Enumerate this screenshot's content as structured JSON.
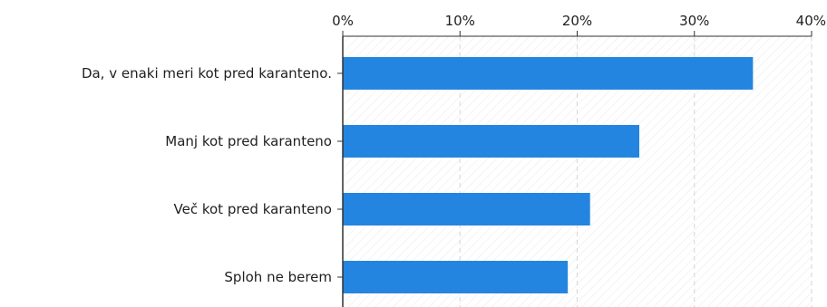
{
  "chart_data": {
    "type": "bar",
    "orientation": "horizontal",
    "categories": [
      "Da, v enaki meri kot pred karanteno.",
      "Manj kot pred karanteno",
      "Več kot pred karanteno",
      "Sploh ne berem"
    ],
    "values": [
      35.0,
      25.3,
      21.1,
      19.2
    ],
    "value_unit": "%",
    "xlim": [
      0,
      40
    ],
    "xticks": [
      0,
      10,
      20,
      30,
      40
    ],
    "xtick_labels": [
      "0%",
      "10%",
      "20%",
      "30%",
      "40%"
    ],
    "x_axis_position": "top",
    "grid": true,
    "grid_style": "dashed",
    "plot_background": "hatched",
    "bar_color": "#2485e0",
    "title": "",
    "xlabel": "",
    "ylabel": ""
  }
}
